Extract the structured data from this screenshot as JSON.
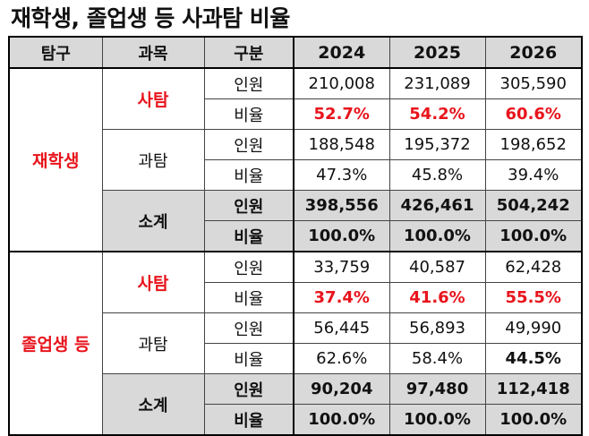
{
  "title": "재학생, 졸업생 등 사과탐 비율",
  "headers": [
    "탐구",
    "과목",
    "구분",
    "2024",
    "2025",
    "2026"
  ],
  "groups": [
    {
      "name": "재학생",
      "subjects": [
        {
          "name": "사탐",
          "rows": [
            {
              "label": "인원",
              "values": [
                "210,008",
                "231,089",
                "305,590"
              ]
            },
            {
              "label": "비율",
              "values": [
                "52.7%",
                "54.2%",
                "60.6%"
              ]
            }
          ]
        },
        {
          "name": "과탐",
          "rows": [
            {
              "label": "인원",
              "values": [
                "188,548",
                "195,372",
                "198,652"
              ]
            },
            {
              "label": "비율",
              "values": [
                "47.3%",
                "45.8%",
                "39.4%"
              ]
            }
          ]
        },
        {
          "name": "소계",
          "rows": [
            {
              "label": "인원",
              "values": [
                "398,556",
                "426,461",
                "504,242"
              ]
            },
            {
              "label": "비율",
              "values": [
                "100.0%",
                "100.0%",
                "100.0%"
              ]
            }
          ]
        }
      ]
    },
    {
      "name": "졸업생 등",
      "subjects": [
        {
          "name": "사탐",
          "rows": [
            {
              "label": "인원",
              "values": [
                "33,759",
                "40,587",
                "62,428"
              ]
            },
            {
              "label": "비율",
              "values": [
                "37.4%",
                "41.6%",
                "55.5%"
              ]
            }
          ]
        },
        {
          "name": "과탐",
          "rows": [
            {
              "label": "인원",
              "values": [
                "56,445",
                "56,893",
                "49,990"
              ]
            },
            {
              "label": "비율",
              "values": [
                "62.6%",
                "58.4%",
                "44.5%"
              ]
            }
          ]
        },
        {
          "name": "소계",
          "rows": [
            {
              "label": "인원",
              "values": [
                "90,204",
                "97,480",
                "112,418"
              ]
            },
            {
              "label": "비율",
              "values": [
                "100.0%",
                "100.0%",
                "100.0%"
              ]
            }
          ]
        }
      ]
    }
  ],
  "colors": {
    "highlight": "#e8141c",
    "header_bg": "#d9d9d9"
  }
}
